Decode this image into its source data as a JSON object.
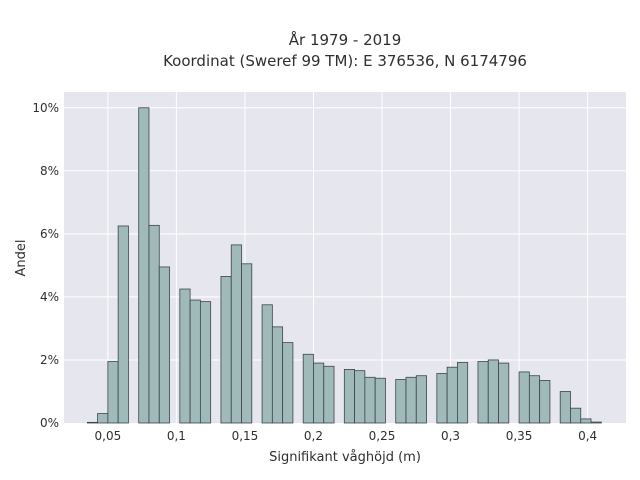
{
  "chart_data": {
    "type": "bar",
    "title": "År 1979 - 2019",
    "subtitle": "Koordinat (Sweref 99 TM): E 376536, N 6174796",
    "xlabel": "Signifikant våghöjd (m)",
    "ylabel": "Andel",
    "xlim": [
      0.018,
      0.428
    ],
    "ylim": [
      0,
      10.5
    ],
    "x_ticks": [
      {
        "value": 0.05,
        "label": "0,05"
      },
      {
        "value": 0.1,
        "label": "0,1"
      },
      {
        "value": 0.15,
        "label": "0,15"
      },
      {
        "value": 0.2,
        "label": "0,2"
      },
      {
        "value": 0.25,
        "label": "0,25"
      },
      {
        "value": 0.3,
        "label": "0,3"
      },
      {
        "value": 0.35,
        "label": "0,35"
      },
      {
        "value": 0.4,
        "label": "0,4"
      }
    ],
    "y_ticks": [
      {
        "value": 0,
        "label": "0%"
      },
      {
        "value": 2,
        "label": "2%"
      },
      {
        "value": 4,
        "label": "4%"
      },
      {
        "value": 6,
        "label": "6%"
      },
      {
        "value": 8,
        "label": "8%"
      },
      {
        "value": 10,
        "label": "10%"
      }
    ],
    "bin_width": 0.0075,
    "bins": [
      {
        "x0": 0.035,
        "value": 0.02
      },
      {
        "x0": 0.0425,
        "value": 0.3
      },
      {
        "x0": 0.05,
        "value": 1.95
      },
      {
        "x0": 0.0575,
        "value": 6.25
      },
      {
        "x0": 0.0725,
        "value": 10.0
      },
      {
        "x0": 0.08,
        "value": 6.27
      },
      {
        "x0": 0.0875,
        "value": 4.95
      },
      {
        "x0": 0.1025,
        "value": 4.25
      },
      {
        "x0": 0.11,
        "value": 3.9
      },
      {
        "x0": 0.1175,
        "value": 3.85
      },
      {
        "x0": 0.1325,
        "value": 4.65
      },
      {
        "x0": 0.14,
        "value": 5.65
      },
      {
        "x0": 0.1475,
        "value": 5.05
      },
      {
        "x0": 0.1625,
        "value": 3.75
      },
      {
        "x0": 0.17,
        "value": 3.05
      },
      {
        "x0": 0.1775,
        "value": 2.55
      },
      {
        "x0": 0.1925,
        "value": 2.18
      },
      {
        "x0": 0.2,
        "value": 1.9
      },
      {
        "x0": 0.2075,
        "value": 1.8
      },
      {
        "x0": 0.2225,
        "value": 1.7
      },
      {
        "x0": 0.23,
        "value": 1.66
      },
      {
        "x0": 0.2375,
        "value": 1.45
      },
      {
        "x0": 0.245,
        "value": 1.42
      },
      {
        "x0": 0.26,
        "value": 1.38
      },
      {
        "x0": 0.2675,
        "value": 1.45
      },
      {
        "x0": 0.275,
        "value": 1.5
      },
      {
        "x0": 0.29,
        "value": 1.57
      },
      {
        "x0": 0.2975,
        "value": 1.77
      },
      {
        "x0": 0.305,
        "value": 1.92
      },
      {
        "x0": 0.32,
        "value": 1.95
      },
      {
        "x0": 0.3275,
        "value": 2.0
      },
      {
        "x0": 0.335,
        "value": 1.9
      },
      {
        "x0": 0.35,
        "value": 1.62
      },
      {
        "x0": 0.3575,
        "value": 1.5
      },
      {
        "x0": 0.365,
        "value": 1.35
      },
      {
        "x0": 0.38,
        "value": 1.0
      },
      {
        "x0": 0.3875,
        "value": 0.47
      },
      {
        "x0": 0.395,
        "value": 0.13
      },
      {
        "x0": 0.4025,
        "value": 0.03
      }
    ],
    "grid": true,
    "colors": {
      "plot_background": "#e6e6ef",
      "bar_fill": "#a0b9b9",
      "bar_stroke": "#3b4646",
      "grid": "#ffffff"
    }
  }
}
